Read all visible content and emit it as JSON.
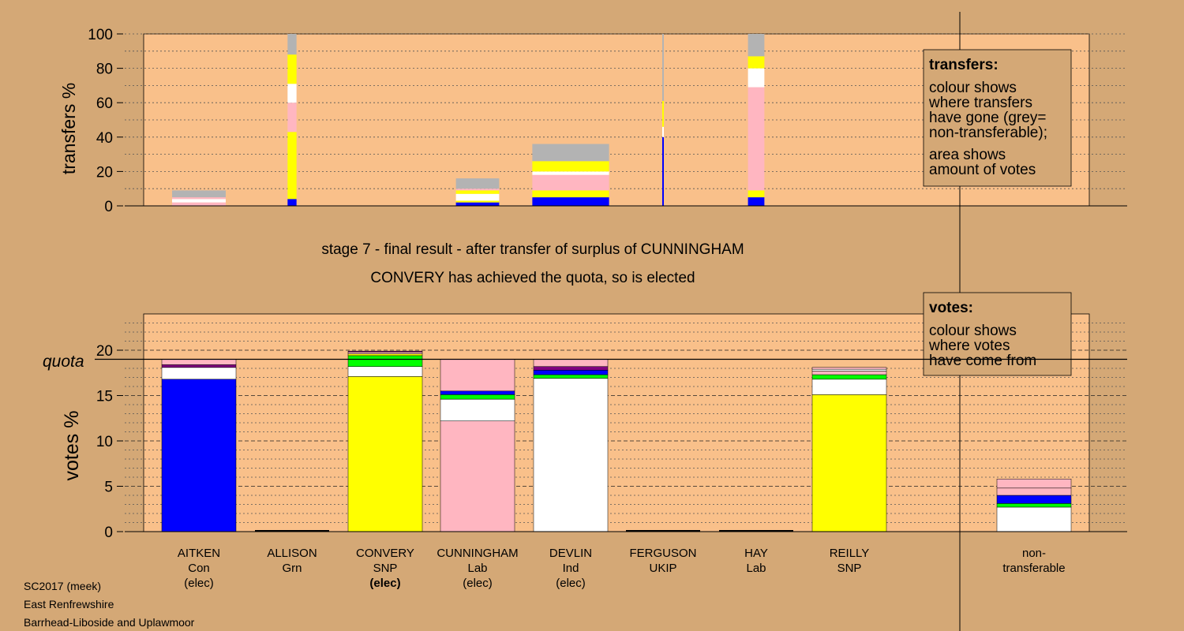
{
  "palette": {
    "background": "#d4a876",
    "plot_bg": "#f9c08a",
    "blue": "#0000ff",
    "yellow": "#ffff00",
    "pink": "#ffb6c1",
    "white": "#ffffff",
    "green": "#00ff00",
    "purple": "#800080",
    "grey": "#b3b3b3"
  },
  "stage_line1": "stage 7 - final result - after transfer of surplus of CUNNINGHAM",
  "stage_line2": "CONVERY has achieved the quota, so is elected",
  "footer": [
    "SC2017 (meek)",
    "East Renfrewshire",
    "Barrhead-Liboside and Uplawmoor"
  ],
  "transfers_legend": {
    "title": "transfers:",
    "lines": [
      "colour shows",
      "where transfers",
      "have gone (grey=",
      "non-transferable);",
      "area shows",
      "amount of votes"
    ]
  },
  "votes_legend": {
    "title": "votes:",
    "lines": [
      "colour shows",
      "where votes",
      "have come from"
    ]
  },
  "candidates": [
    {
      "name": "AITKEN",
      "party": "Con",
      "status": "(elec)",
      "status_bold": false
    },
    {
      "name": "ALLISON",
      "party": "Grn",
      "status": "",
      "status_bold": false
    },
    {
      "name": "CONVERY",
      "party": "SNP",
      "status": "(elec)",
      "status_bold": true
    },
    {
      "name": "CUNNINGHAM",
      "party": "Lab",
      "status": "(elec)",
      "status_bold": false
    },
    {
      "name": "DEVLIN",
      "party": "Ind",
      "status": "(elec)",
      "status_bold": false
    },
    {
      "name": "FERGUSON",
      "party": "UKIP",
      "status": "",
      "status_bold": false
    },
    {
      "name": "HAY",
      "party": "Lab",
      "status": "",
      "status_bold": false
    },
    {
      "name": "REILLY",
      "party": "SNP",
      "status": "",
      "status_bold": false
    }
  ],
  "nontransferable_label": [
    "non-",
    "transferable"
  ],
  "chart_data": [
    {
      "type": "bar",
      "ylabel": "transfers %",
      "ylim": [
        0,
        100
      ],
      "yticks": [
        0,
        20,
        40,
        60,
        80,
        100
      ],
      "bars": [
        {
          "column": "AITKEN",
          "width_units": 0.72,
          "segments": [
            [
              "pink",
              0,
              2
            ],
            [
              "white",
              2,
              4
            ],
            [
              "pink",
              4,
              5
            ],
            [
              "grey",
              5,
              9
            ]
          ]
        },
        {
          "column": "ALLISON",
          "width_units": 0.12,
          "segments": [
            [
              "blue",
              0,
              4
            ],
            [
              "yellow",
              4,
              43
            ],
            [
              "pink",
              43,
              60
            ],
            [
              "white",
              60,
              71
            ],
            [
              "yellow",
              71,
              88
            ],
            [
              "grey",
              88,
              100
            ]
          ]
        },
        {
          "column": "CUNNINGHAM",
          "width_units": 0.58,
          "segments": [
            [
              "blue",
              0,
              2
            ],
            [
              "yellow",
              2,
              3
            ],
            [
              "white",
              3,
              7
            ],
            [
              "yellow",
              7,
              9
            ],
            [
              "pink",
              9,
              10
            ],
            [
              "grey",
              10,
              16
            ]
          ]
        },
        {
          "column": "DEVLIN",
          "width_units": 1.03,
          "segments": [
            [
              "blue",
              0,
              5
            ],
            [
              "yellow",
              5,
              9
            ],
            [
              "pink",
              9,
              18
            ],
            [
              "white",
              18,
              20
            ],
            [
              "yellow",
              20,
              26
            ],
            [
              "grey",
              26,
              36
            ]
          ]
        },
        {
          "column": "FERGUSON",
          "width_units": 0.02,
          "segments": [
            [
              "blue",
              0,
              40
            ],
            [
              "white",
              40,
              46
            ],
            [
              "yellow",
              46,
              61
            ],
            [
              "grey",
              61,
              100
            ]
          ]
        },
        {
          "column": "HAY",
          "width_units": 0.22,
          "segments": [
            [
              "blue",
              0,
              5
            ],
            [
              "yellow",
              5,
              9
            ],
            [
              "pink",
              9,
              69
            ],
            [
              "white",
              69,
              80
            ],
            [
              "yellow",
              80,
              87
            ],
            [
              "grey",
              87,
              100
            ]
          ]
        }
      ]
    },
    {
      "type": "bar",
      "ylabel": "votes %",
      "ylim": [
        0,
        24
      ],
      "yticks": [
        0,
        5,
        10,
        15,
        20
      ],
      "quota": 19.0,
      "quota_label": "quota",
      "bars": [
        {
          "column": "AITKEN",
          "segments": [
            [
              "blue",
              0,
              16.8
            ],
            [
              "white",
              16.8,
              18.1
            ],
            [
              "purple",
              18.1,
              18.4
            ],
            [
              "pink",
              18.4,
              19.0
            ]
          ]
        },
        {
          "column": "ALLISON",
          "segments": []
        },
        {
          "column": "CONVERY",
          "segments": [
            [
              "yellow",
              0,
              17.1
            ],
            [
              "white",
              17.1,
              18.2
            ],
            [
              "green",
              18.2,
              19.4
            ],
            [
              "yellow",
              19.4,
              19.6
            ],
            [
              "pink",
              19.6,
              19.8
            ],
            [
              "purple",
              19.8,
              19.9
            ]
          ]
        },
        {
          "column": "CUNNINGHAM",
          "segments": [
            [
              "pink",
              0,
              12.2
            ],
            [
              "white",
              12.2,
              14.6
            ],
            [
              "green",
              14.6,
              15.1
            ],
            [
              "blue",
              15.1,
              15.5
            ],
            [
              "pink",
              15.5,
              19.0
            ]
          ]
        },
        {
          "column": "DEVLIN",
          "segments": [
            [
              "white",
              0,
              16.9
            ],
            [
              "green",
              16.9,
              17.3
            ],
            [
              "blue",
              17.3,
              17.8
            ],
            [
              "purple",
              17.8,
              18.2
            ],
            [
              "pink",
              18.2,
              19.0
            ]
          ]
        },
        {
          "column": "FERGUSON",
          "segments": []
        },
        {
          "column": "HAY",
          "segments": []
        },
        {
          "column": "REILLY",
          "segments": [
            [
              "yellow",
              0,
              15.1
            ],
            [
              "white",
              15.1,
              16.8
            ],
            [
              "green",
              16.8,
              17.3
            ],
            [
              "pink",
              17.3,
              17.7
            ],
            [
              "white",
              17.7,
              17.9
            ],
            [
              "pink",
              17.9,
              18.1
            ]
          ]
        },
        {
          "column": "non-transferable",
          "segments": [
            [
              "white",
              0,
              2.7
            ],
            [
              "green",
              2.7,
              3.1
            ],
            [
              "blue",
              3.1,
              4.0
            ],
            [
              "pink",
              4.0,
              4.8
            ],
            [
              "pink",
              4.8,
              5.8
            ]
          ]
        }
      ]
    }
  ]
}
